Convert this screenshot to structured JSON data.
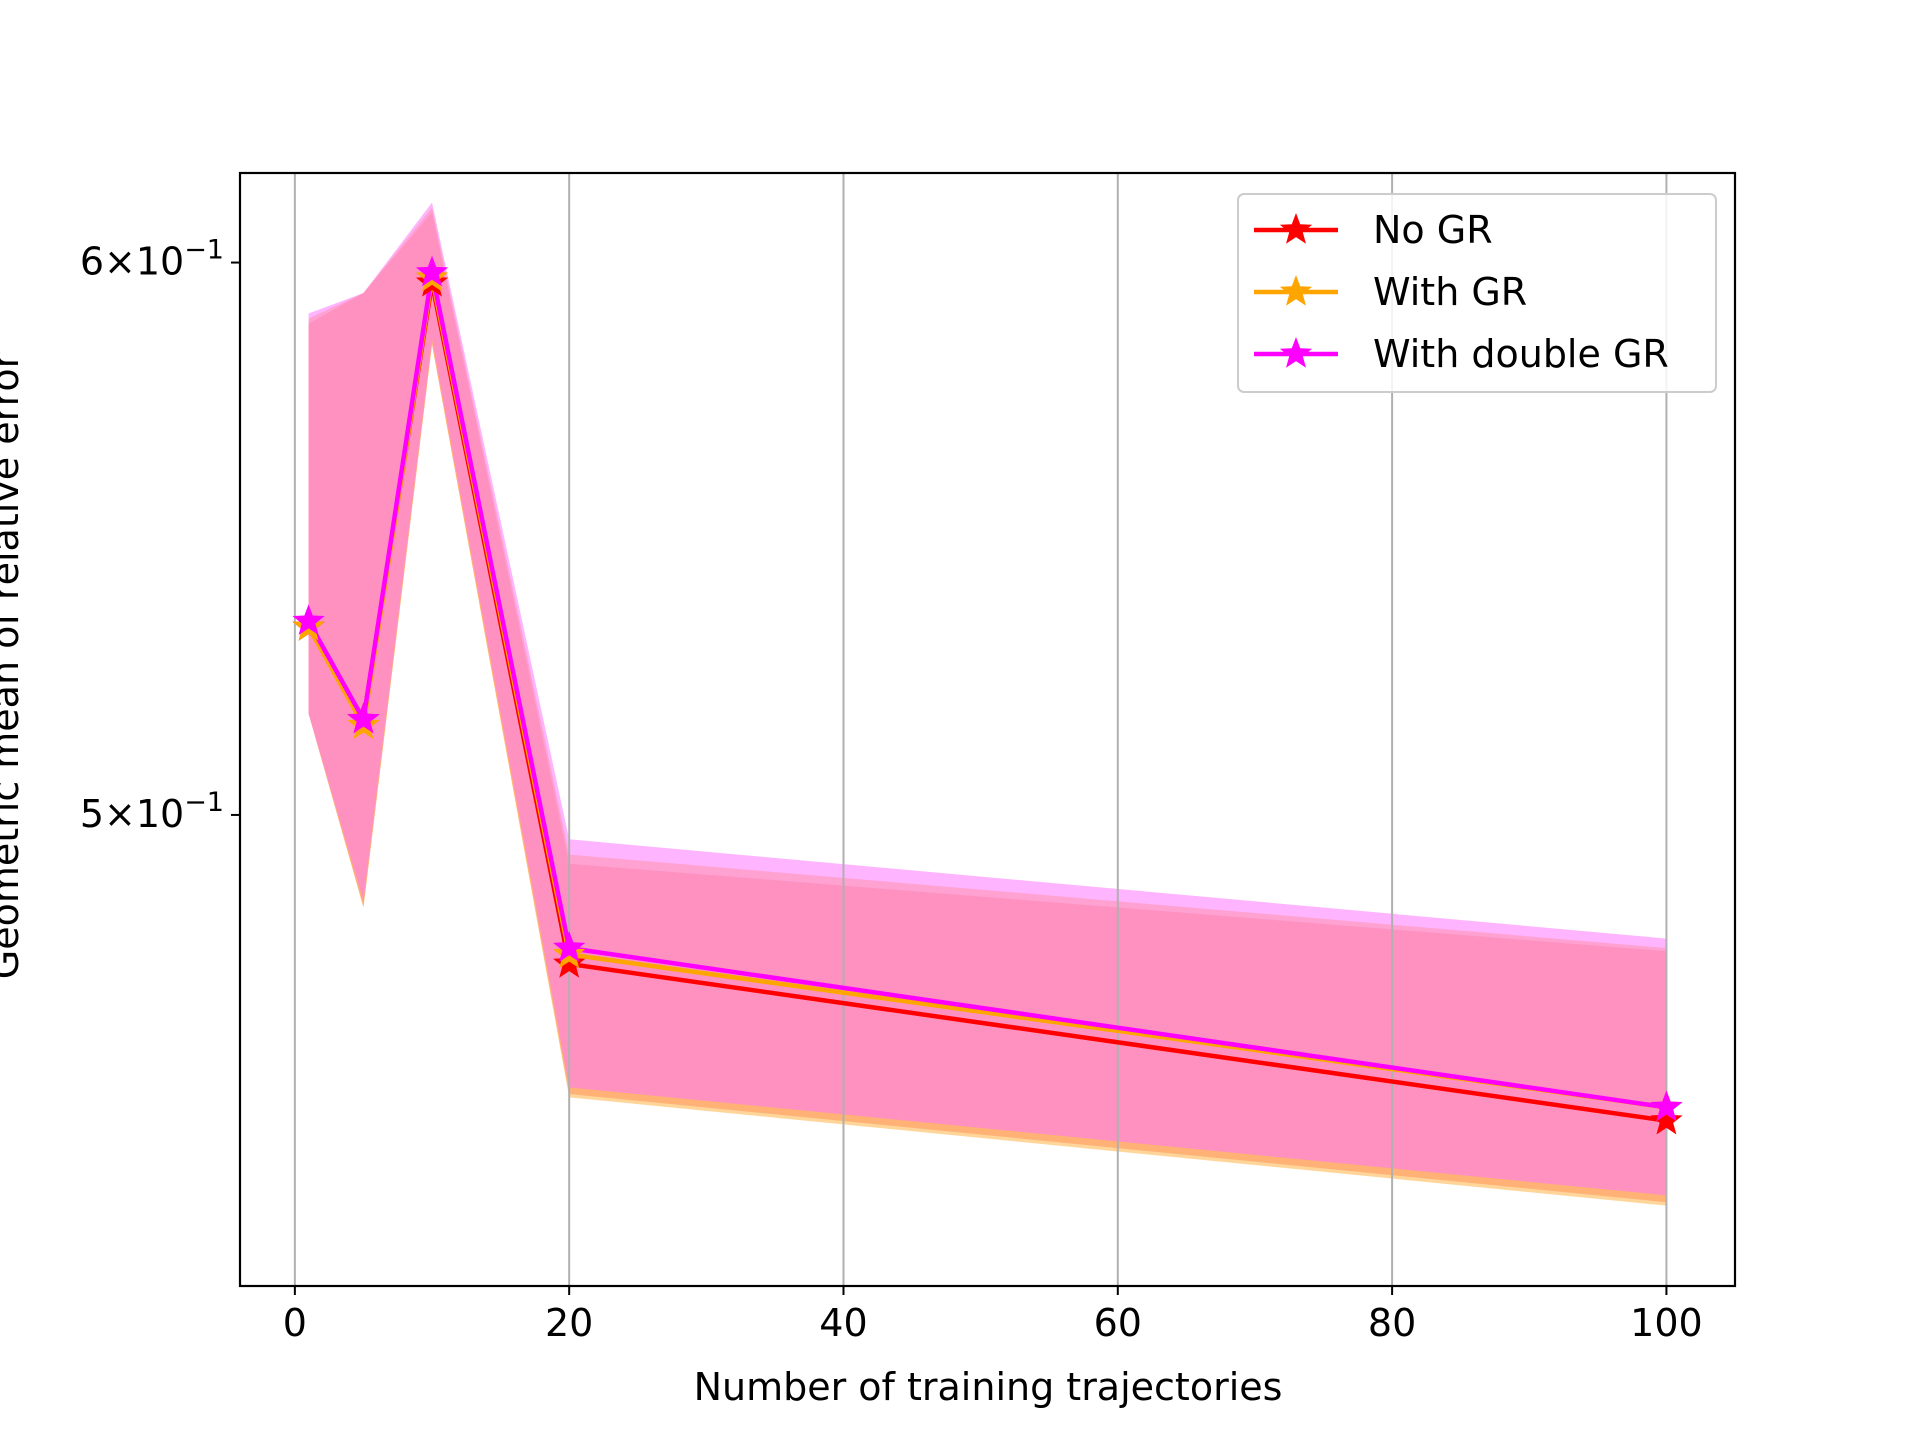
{
  "chart_data": {
    "type": "line",
    "xlabel": "Number of training trajectories",
    "ylabel": "Geometric mean of relative error",
    "x": [
      1,
      5,
      10,
      20,
      100
    ],
    "xlim": [
      -4,
      105
    ],
    "xticks": [
      0,
      20,
      40,
      60,
      80,
      100
    ],
    "y_scale": "log",
    "ylim": [
      0.428,
      0.618
    ],
    "yticks": [
      {
        "value": 0.6,
        "mantissa": "6",
        "label": "6×10⁻¹"
      },
      {
        "value": 0.5,
        "mantissa": "5",
        "label": "5×10⁻¹"
      }
    ],
    "grid": "vertical (x only)",
    "legend_position": "top-right",
    "series": [
      {
        "name": "No GR",
        "color": "#ff0000",
        "band_color": "#ff6f6f",
        "marker": "star",
        "values": [
          0.532,
          0.516,
          0.596,
          0.476,
          0.452
        ],
        "lower": [
          0.517,
          0.485,
          0.584,
          0.456,
          0.44
        ],
        "upper": [
          0.588,
          0.594,
          0.61,
          0.492,
          0.478
        ]
      },
      {
        "name": "With GR",
        "color": "#ffa500",
        "band_color": "#ffb347",
        "marker": "star",
        "values": [
          0.532,
          0.515,
          0.597,
          0.4775,
          0.454
        ],
        "lower": [
          0.517,
          0.485,
          0.584,
          0.4555,
          0.4395
        ],
        "upper": [
          0.589,
          0.594,
          0.611,
          0.4935,
          0.4785
        ]
      },
      {
        "name": "With double GR",
        "color": "#ff00ff",
        "band_color": "#ff77ff",
        "marker": "star",
        "values": [
          0.533,
          0.516,
          0.598,
          0.4785,
          0.454
        ],
        "lower": [
          0.517,
          0.486,
          0.585,
          0.457,
          0.441
        ],
        "upper": [
          0.59,
          0.594,
          0.612,
          0.496,
          0.48
        ]
      }
    ]
  }
}
